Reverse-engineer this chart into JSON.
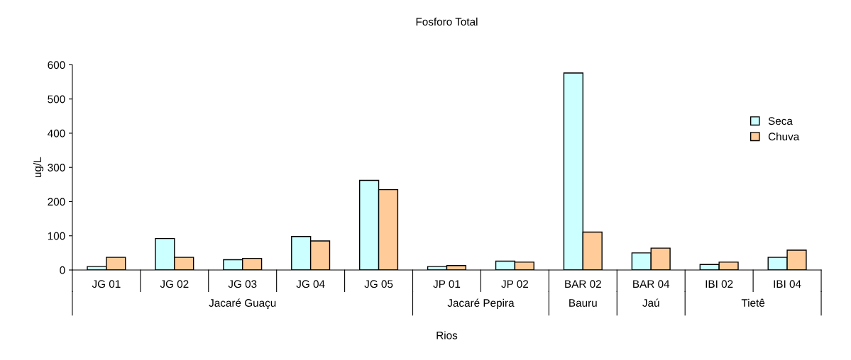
{
  "chart_data": {
    "type": "bar",
    "title": "Fosforo Total",
    "xlabel": "Rios",
    "ylabel": "ug/L",
    "categories": [
      "JG 01",
      "JG 02",
      "JG 03",
      "JG 04",
      "JG 05",
      "JP 01",
      "JP 02",
      "BAR 02",
      "BAR 04",
      "IBI 02",
      "IBI 04"
    ],
    "series": [
      {
        "name": "Seca",
        "color": "#ccffff",
        "values": [
          10,
          92,
          30,
          98,
          262,
          10,
          26,
          576,
          50,
          16,
          37
        ]
      },
      {
        "name": "Chuva",
        "color": "#ffcc99",
        "values": [
          37,
          37,
          34,
          85,
          235,
          13,
          23,
          111,
          64,
          23,
          58
        ]
      }
    ],
    "annotations": [
      "Jacaré Guaçu",
      "Jacaré Pepira",
      "Bauru",
      "Jaú",
      "Tietê"
    ],
    "ylim": [
      0,
      600
    ],
    "yticks": [
      0,
      100,
      200,
      300,
      400,
      500,
      600
    ],
    "grid": false,
    "legend": "top right"
  }
}
